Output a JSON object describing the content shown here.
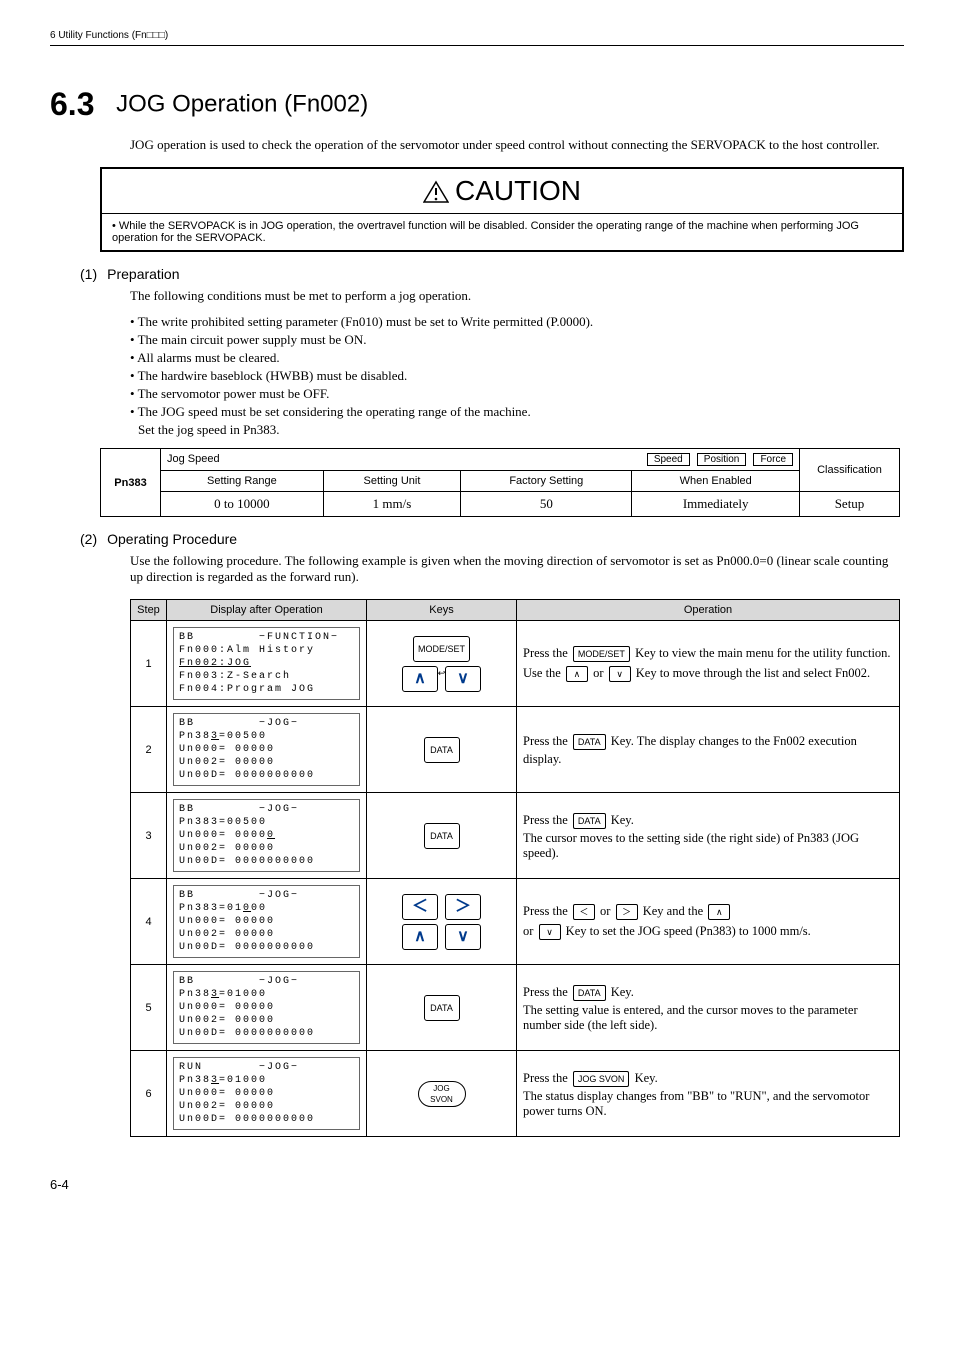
{
  "header": {
    "chapter": "6  Utility Functions (Fn□□□)"
  },
  "section": {
    "number": "6.3",
    "title": "JOG Operation (Fn002)",
    "intro": "JOG operation is used to check the operation of the servomotor under speed control without connecting the SERVOPACK to the host controller."
  },
  "caution": {
    "label": "CAUTION",
    "text": "•  While the SERVOPACK is in JOG operation, the overtravel function will be disabled. Consider the operating range of the machine when performing JOG operation for the SERVOPACK."
  },
  "prep": {
    "num": "(1)",
    "title": "Preparation",
    "intro": "The following conditions must be met to perform a jog operation.",
    "bullets": [
      "• The write prohibited setting parameter (Fn010) must be set to Write permitted (P.0000).",
      "• The main circuit power supply must be ON.",
      "• All alarms must be cleared.",
      "• The hardwire baseblock (HWBB) must be disabled.",
      "• The servomotor power must be OFF.",
      "• The JOG speed must be set considering the operating range of the machine."
    ],
    "bullet_indent": "Set the jog speed in Pn383."
  },
  "param": {
    "id": "Pn383",
    "name": "Jog Speed",
    "badges": [
      "Speed",
      "Position",
      "Force"
    ],
    "class_hdr": "Classification",
    "h_range": "Setting Range",
    "h_unit": "Setting Unit",
    "h_factory": "Factory Setting",
    "h_when": "When Enabled",
    "v_range": "0 to 10000",
    "v_unit": "1 mm/s",
    "v_factory": "50",
    "v_when": "Immediately",
    "v_class": "Setup"
  },
  "proc": {
    "num": "(2)",
    "title": "Operating Procedure",
    "intro": "Use the following procedure. The following example is given when the moving direction of servomotor is set as Pn000.0=0 (linear scale counting up direction is regarded as the forward run).",
    "th_step": "Step",
    "th_disp": "Display after Operation",
    "th_keys": "Keys",
    "th_op": "Operation",
    "rows": [
      {
        "step": "1",
        "lcd": {
          "l1a": "BB",
          "l1b": "−FUNCTION−",
          "l2": "Fn000:Alm History",
          "l3": "Fn002:JOG",
          "l3_cursor": true,
          "l4": "Fn003:Z-Search",
          "l5": "Fn004:Program JOG"
        },
        "keys": "modeset_updown",
        "op_a": "Press the ",
        "op_key1": "MODE/SET",
        "op_b": " Key to view the main menu for the utility function.",
        "op_c": "Use the ",
        "op_key2": "∧",
        "op_d": " or ",
        "op_key3": "∨",
        "op_e": " Key to move through the list and select Fn002."
      },
      {
        "step": "2",
        "lcd": {
          "l1a": "BB",
          "l1b": "−JOG−",
          "l2p": "Pn38",
          "l2c": "3",
          "l2s": "=00500",
          "l3": "Un000= 00000",
          "l4": "Un002= 00000",
          "l5": "Un00D= 0000000000"
        },
        "keys": "data",
        "op_a": "Press the ",
        "op_key1": "DATA",
        "op_b": " Key. The display changes to the Fn002 execution display."
      },
      {
        "step": "3",
        "lcd": {
          "l1a": "BB",
          "l1b": "−JOG−",
          "l2": "Pn383=00500",
          "l3p": "Un000= 0000",
          "l3c": "0",
          "l4": "Un002= 00000",
          "l5": "Un00D= 0000000000"
        },
        "keys": "data",
        "op_a": "Press the ",
        "op_key1": "DATA",
        "op_b": " Key.",
        "op_c": "The cursor moves to the setting side (the right side) of Pn383 (JOG speed)."
      },
      {
        "step": "4",
        "lcd": {
          "l1a": "BB",
          "l1b": "−JOG−",
          "l2p": "Pn383=01",
          "l2c": "0",
          "l2s": "00",
          "l3": "Un000= 00000",
          "l4": "Un002= 00000",
          "l5": "Un00D= 0000000000"
        },
        "keys": "lrud",
        "op_a": "Press the ",
        "op_key1": "＜",
        "op_b": " or ",
        "op_key2": "＞",
        "op_c": " Key and the ",
        "op_key3": "∧",
        "op_d": " or ",
        "op_key4": "∨",
        "op_e": " Key to set the JOG speed (Pn383) to 1000 mm/s."
      },
      {
        "step": "5",
        "lcd": {
          "l1a": "BB",
          "l1b": "−JOG−",
          "l2p": "Pn38",
          "l2c": "3",
          "l2s": "=01000",
          "l3": "Un000= 00000",
          "l4": "Un002= 00000",
          "l5": "Un00D= 0000000000"
        },
        "keys": "data",
        "op_a": "Press the ",
        "op_key1": "DATA",
        "op_b": " Key.",
        "op_c": "The setting value is entered, and the cursor moves to the parameter number side (the left side)."
      },
      {
        "step": "6",
        "lcd": {
          "l1a": "RUN",
          "l1b": "−JOG−",
          "l2p": "Pn38",
          "l2c": "3",
          "l2s": "=01000",
          "l3": "Un000= 00000",
          "l4": "Un002= 00000",
          "l5": "Un00D= 0000000000"
        },
        "keys": "jogsvon",
        "op_a": "Press the ",
        "op_key1": "JOG SVON",
        "op_b": " Key.",
        "op_c": "The status display changes from \"BB\" to \"RUN\", and the servomotor power turns ON."
      }
    ]
  },
  "footer": {
    "page": "6-4"
  },
  "colors": {
    "arrow": "#003a8c",
    "header_bg": "#d9d9d9"
  }
}
